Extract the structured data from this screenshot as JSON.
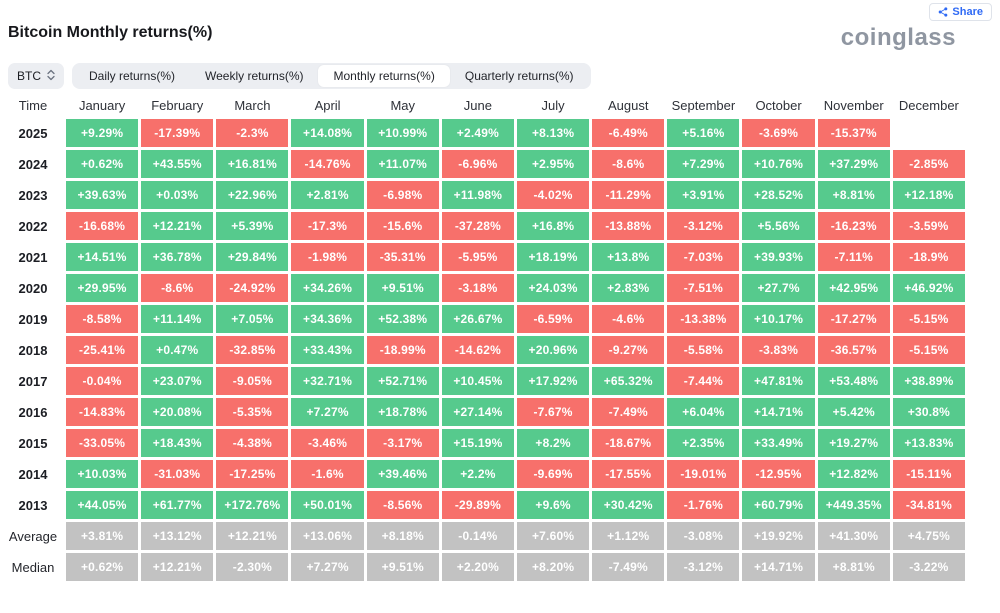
{
  "header": {
    "title": "Bitcoin Monthly returns(%)",
    "logo_text": "coinglass",
    "share_label": "Share"
  },
  "controls": {
    "symbol": "BTC",
    "tabs": [
      {
        "label": "Daily returns(%)",
        "active": false
      },
      {
        "label": "Weekly returns(%)",
        "active": false
      },
      {
        "label": "Monthly returns(%)",
        "active": true
      },
      {
        "label": "Quarterly returns(%)",
        "active": false
      }
    ]
  },
  "colors": {
    "positive": "#56ca8d",
    "negative": "#f7706b",
    "neutral": "#c2c2c2",
    "accent_blue": "#2f6af5",
    "tab_background": "#eceef2"
  },
  "icons": {
    "share": "share-nodes-icon",
    "symbol_updown": "chevron-up-down-icon"
  },
  "table": {
    "columns": [
      "Time",
      "January",
      "February",
      "March",
      "April",
      "May",
      "June",
      "July",
      "August",
      "September",
      "October",
      "November",
      "December"
    ],
    "rows": [
      {
        "label": "2025",
        "values": [
          "+9.29%",
          "-17.39%",
          "-2.3%",
          "+14.08%",
          "+10.99%",
          "+2.49%",
          "+8.13%",
          "-6.49%",
          "+5.16%",
          "-3.69%",
          "-15.37%",
          ""
        ],
        "colors": [
          "g",
          "r",
          "r",
          "g",
          "g",
          "g",
          "g",
          "r",
          "g",
          "r",
          "r",
          "e"
        ]
      },
      {
        "label": "2024",
        "values": [
          "+0.62%",
          "+43.55%",
          "+16.81%",
          "-14.76%",
          "+11.07%",
          "-6.96%",
          "+2.95%",
          "-8.6%",
          "+7.29%",
          "+10.76%",
          "+37.29%",
          "-2.85%"
        ],
        "colors": [
          "g",
          "g",
          "g",
          "r",
          "g",
          "r",
          "g",
          "r",
          "g",
          "g",
          "g",
          "r"
        ]
      },
      {
        "label": "2023",
        "values": [
          "+39.63%",
          "+0.03%",
          "+22.96%",
          "+2.81%",
          "-6.98%",
          "+11.98%",
          "-4.02%",
          "-11.29%",
          "+3.91%",
          "+28.52%",
          "+8.81%",
          "+12.18%"
        ],
        "colors": [
          "g",
          "g",
          "g",
          "g",
          "r",
          "g",
          "r",
          "r",
          "g",
          "g",
          "g",
          "g"
        ]
      },
      {
        "label": "2022",
        "values": [
          "-16.68%",
          "+12.21%",
          "+5.39%",
          "-17.3%",
          "-15.6%",
          "-37.28%",
          "+16.8%",
          "-13.88%",
          "-3.12%",
          "+5.56%",
          "-16.23%",
          "-3.59%"
        ],
        "colors": [
          "r",
          "g",
          "g",
          "r",
          "r",
          "r",
          "g",
          "r",
          "r",
          "g",
          "r",
          "r"
        ]
      },
      {
        "label": "2021",
        "values": [
          "+14.51%",
          "+36.78%",
          "+29.84%",
          "-1.98%",
          "-35.31%",
          "-5.95%",
          "+18.19%",
          "+13.8%",
          "-7.03%",
          "+39.93%",
          "-7.11%",
          "-18.9%"
        ],
        "colors": [
          "g",
          "g",
          "g",
          "r",
          "r",
          "r",
          "g",
          "g",
          "r",
          "g",
          "r",
          "r"
        ]
      },
      {
        "label": "2020",
        "values": [
          "+29.95%",
          "-8.6%",
          "-24.92%",
          "+34.26%",
          "+9.51%",
          "-3.18%",
          "+24.03%",
          "+2.83%",
          "-7.51%",
          "+27.7%",
          "+42.95%",
          "+46.92%"
        ],
        "colors": [
          "g",
          "r",
          "r",
          "g",
          "g",
          "r",
          "g",
          "g",
          "r",
          "g",
          "g",
          "g"
        ]
      },
      {
        "label": "2019",
        "values": [
          "-8.58%",
          "+11.14%",
          "+7.05%",
          "+34.36%",
          "+52.38%",
          "+26.67%",
          "-6.59%",
          "-4.6%",
          "-13.38%",
          "+10.17%",
          "-17.27%",
          "-5.15%"
        ],
        "colors": [
          "r",
          "g",
          "g",
          "g",
          "g",
          "g",
          "r",
          "r",
          "r",
          "g",
          "r",
          "r"
        ]
      },
      {
        "label": "2018",
        "values": [
          "-25.41%",
          "+0.47%",
          "-32.85%",
          "+33.43%",
          "-18.99%",
          "-14.62%",
          "+20.96%",
          "-9.27%",
          "-5.58%",
          "-3.83%",
          "-36.57%",
          "-5.15%"
        ],
        "colors": [
          "r",
          "g",
          "r",
          "g",
          "r",
          "r",
          "g",
          "r",
          "r",
          "r",
          "r",
          "r"
        ]
      },
      {
        "label": "2017",
        "values": [
          "-0.04%",
          "+23.07%",
          "-9.05%",
          "+32.71%",
          "+52.71%",
          "+10.45%",
          "+17.92%",
          "+65.32%",
          "-7.44%",
          "+47.81%",
          "+53.48%",
          "+38.89%"
        ],
        "colors": [
          "r",
          "g",
          "r",
          "g",
          "g",
          "g",
          "g",
          "g",
          "r",
          "g",
          "g",
          "g"
        ]
      },
      {
        "label": "2016",
        "values": [
          "-14.83%",
          "+20.08%",
          "-5.35%",
          "+7.27%",
          "+18.78%",
          "+27.14%",
          "-7.67%",
          "-7.49%",
          "+6.04%",
          "+14.71%",
          "+5.42%",
          "+30.8%"
        ],
        "colors": [
          "r",
          "g",
          "r",
          "g",
          "g",
          "g",
          "r",
          "r",
          "g",
          "g",
          "g",
          "g"
        ]
      },
      {
        "label": "2015",
        "values": [
          "-33.05%",
          "+18.43%",
          "-4.38%",
          "-3.46%",
          "-3.17%",
          "+15.19%",
          "+8.2%",
          "-18.67%",
          "+2.35%",
          "+33.49%",
          "+19.27%",
          "+13.83%"
        ],
        "colors": [
          "r",
          "g",
          "r",
          "r",
          "r",
          "g",
          "g",
          "r",
          "g",
          "g",
          "g",
          "g"
        ]
      },
      {
        "label": "2014",
        "values": [
          "+10.03%",
          "-31.03%",
          "-17.25%",
          "-1.6%",
          "+39.46%",
          "+2.2%",
          "-9.69%",
          "-17.55%",
          "-19.01%",
          "-12.95%",
          "+12.82%",
          "-15.11%"
        ],
        "colors": [
          "g",
          "r",
          "r",
          "r",
          "g",
          "g",
          "r",
          "r",
          "r",
          "r",
          "g",
          "r"
        ]
      },
      {
        "label": "2013",
        "values": [
          "+44.05%",
          "+61.77%",
          "+172.76%",
          "+50.01%",
          "-8.56%",
          "-29.89%",
          "+9.6%",
          "+30.42%",
          "-1.76%",
          "+60.79%",
          "+449.35%",
          "-34.81%"
        ],
        "colors": [
          "g",
          "g",
          "g",
          "g",
          "r",
          "r",
          "g",
          "g",
          "r",
          "g",
          "g",
          "r"
        ]
      },
      {
        "label": "Average",
        "stat": true,
        "values": [
          "+3.81%",
          "+13.12%",
          "+12.21%",
          "+13.06%",
          "+8.18%",
          "-0.14%",
          "+7.60%",
          "+1.12%",
          "-3.08%",
          "+19.92%",
          "+41.30%",
          "+4.75%"
        ],
        "colors": [
          "n",
          "n",
          "n",
          "n",
          "n",
          "n",
          "n",
          "n",
          "n",
          "n",
          "n",
          "n"
        ]
      },
      {
        "label": "Median",
        "stat": true,
        "values": [
          "+0.62%",
          "+12.21%",
          "-2.30%",
          "+7.27%",
          "+9.51%",
          "+2.20%",
          "+8.20%",
          "-7.49%",
          "-3.12%",
          "+14.71%",
          "+8.81%",
          "-3.22%"
        ],
        "colors": [
          "n",
          "n",
          "n",
          "n",
          "n",
          "n",
          "n",
          "n",
          "n",
          "n",
          "n",
          "n"
        ]
      }
    ]
  }
}
